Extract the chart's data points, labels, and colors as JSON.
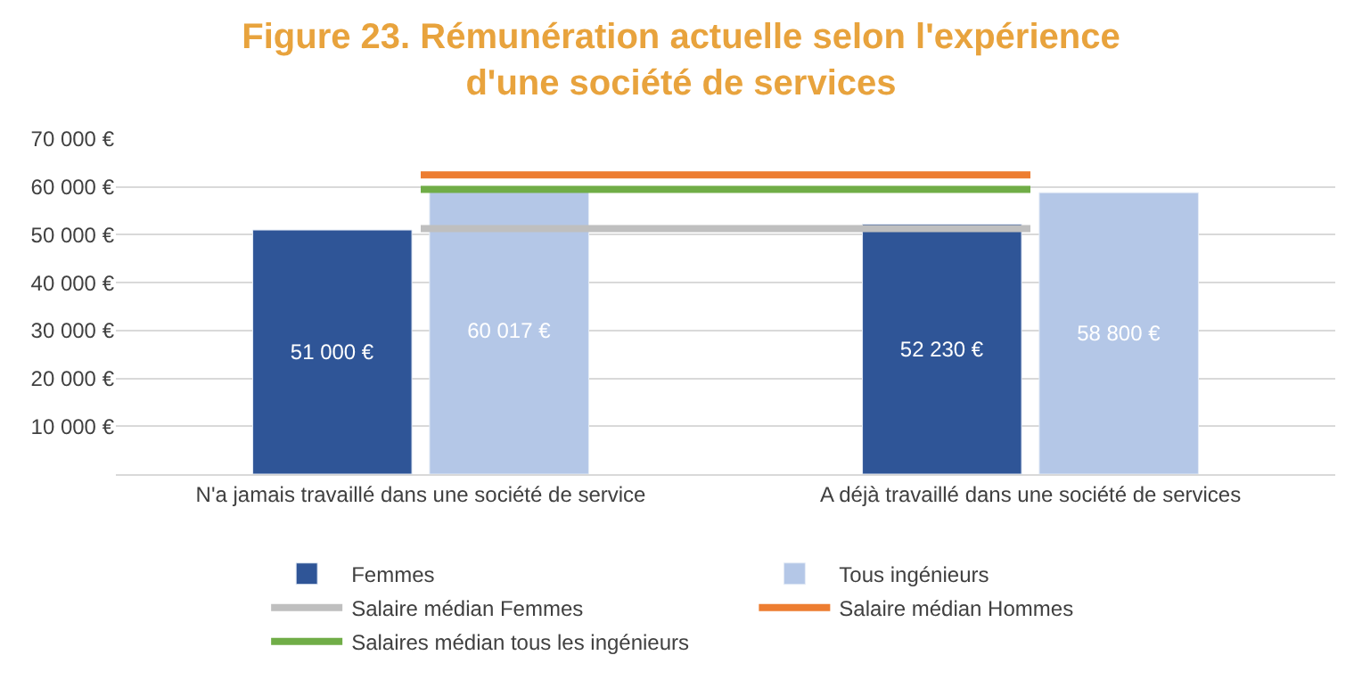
{
  "chart_data": {
    "type": "bar",
    "title": "Figure 23. Rémunération actuelle selon l'expérience\nd'une société de services",
    "categories": [
      "N'a jamais travaillé dans une société de service",
      "A déjà travaillé dans une société de services"
    ],
    "series": [
      {
        "name": "Femmes",
        "color": "#2f5597",
        "values": [
          51000,
          52230
        ],
        "value_labels": [
          "51 000 €",
          "52 230 €"
        ]
      },
      {
        "name": "Tous ingénieurs",
        "color": "#b4c7e7",
        "values": [
          60017,
          58800
        ],
        "value_labels": [
          "60 017 €",
          "58 800 €"
        ]
      },
      {
        "name": "Salaire médian Femmes",
        "type": "line",
        "color": "#bfbfbf",
        "values": [
          51300,
          51300
        ]
      },
      {
        "name": "Salaire médian Hommes",
        "type": "line",
        "color": "#ed7d31",
        "values": [
          62500,
          62500
        ]
      },
      {
        "name": "Salaires médian tous les ingénieurs",
        "type": "line",
        "color": "#70ad47",
        "values": [
          59500,
          59500
        ]
      }
    ],
    "ylim": [
      0,
      70000
    ],
    "yticks": [
      {
        "value": 10000,
        "label": "10 000 €"
      },
      {
        "value": 20000,
        "label": "20 000 €"
      },
      {
        "value": 30000,
        "label": "30 000 €"
      },
      {
        "value": 40000,
        "label": "40 000 €"
      },
      {
        "value": 50000,
        "label": "50 000 €"
      },
      {
        "value": 60000,
        "label": "60 000 €"
      },
      {
        "value": 70000,
        "label": "70 000 €"
      }
    ],
    "grid": "y",
    "legend": "bottom",
    "marker": "none",
    "line_style": "solid"
  }
}
